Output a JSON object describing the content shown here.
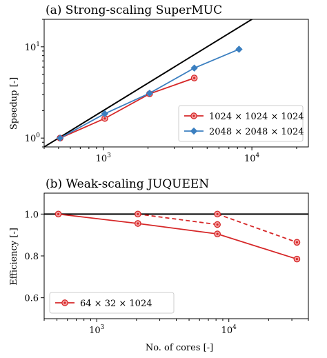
{
  "chart_data": [
    {
      "type": "line",
      "title": "(a) Strong-scaling SuperMUC",
      "xlabel": "",
      "ylabel": "Speedup [-]",
      "xscale": "log",
      "yscale": "log",
      "xlim": [
        400,
        24000
      ],
      "ylim": [
        0.8,
        20
      ],
      "xticks": [
        {
          "value": 1000,
          "base": "10",
          "exp": "3"
        },
        {
          "value": 10000,
          "base": "10",
          "exp": "4"
        }
      ],
      "yticks": [
        {
          "value": 1,
          "base": "10",
          "exp": "0"
        },
        {
          "value": 10,
          "base": "10",
          "exp": "1"
        }
      ],
      "grid": false,
      "legend_position": "lower-right",
      "reference_line": {
        "label": "",
        "color": "#000000",
        "points": [
          [
            400,
            0.8
          ],
          [
            12000,
            24
          ]
        ]
      },
      "series": [
        {
          "name": "1024 × 1024 × 1024",
          "color": "#d62728",
          "marker": "circle",
          "dash": false,
          "x": [
            512,
            1024,
            2048,
            4096
          ],
          "y": [
            1.0,
            1.64,
            3.05,
            4.55
          ]
        },
        {
          "name": "2048 × 2048 × 1024",
          "color": "#3b7fc0",
          "marker": "diamond",
          "dash": false,
          "x": [
            512,
            1024,
            2048,
            4096,
            8192
          ],
          "y": [
            1.0,
            1.85,
            3.1,
            5.85,
            9.4
          ]
        }
      ]
    },
    {
      "type": "line",
      "title": "(b) Weak-scaling JUQUEEN",
      "xlabel": "No. of cores [-]",
      "ylabel": "Efficiency [-]",
      "xscale": "log",
      "yscale": "linear",
      "xlim": [
        400,
        40000
      ],
      "ylim": [
        0.5,
        1.1
      ],
      "xticks": [
        {
          "value": 1000,
          "base": "10",
          "exp": "3"
        },
        {
          "value": 10000,
          "base": "10",
          "exp": "4"
        }
      ],
      "yticks": [
        {
          "value": 0.6,
          "label": "0.6"
        },
        {
          "value": 0.8,
          "label": "0.8"
        },
        {
          "value": 1.0,
          "label": "1.0"
        }
      ],
      "grid": false,
      "legend_position": "lower-left",
      "reference_line": {
        "label": "",
        "color": "#000000",
        "points": [
          [
            400,
            1.0
          ],
          [
            40000,
            1.0
          ]
        ]
      },
      "series": [
        {
          "name": "64 × 32 × 1024",
          "color": "#d62728",
          "marker": "circle",
          "dash": false,
          "x": [
            512,
            2048,
            8192,
            32768
          ],
          "y": [
            1.0,
            0.955,
            0.905,
            0.785
          ]
        },
        {
          "name": "",
          "color": "#d62728",
          "marker": "circle",
          "dash": true,
          "x": [
            2048,
            8192
          ],
          "y": [
            1.0,
            0.95
          ]
        },
        {
          "name": "",
          "color": "#d62728",
          "marker": "circle",
          "dash": true,
          "x": [
            8192,
            32768
          ],
          "y": [
            1.0,
            0.865
          ]
        }
      ]
    }
  ]
}
